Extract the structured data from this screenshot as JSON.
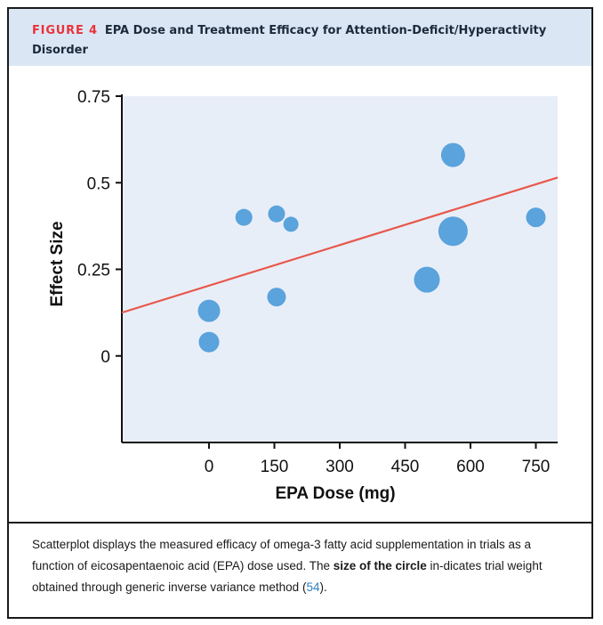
{
  "header": {
    "figure_label": "FIGURE 4",
    "title": "EPA Dose and Treatment Efficacy for Attention-Deficit/Hyperactivity Disorder"
  },
  "chart_data": {
    "type": "scatter",
    "xlabel": "EPA Dose (mg)",
    "ylabel": "Effect Size",
    "xlim": [
      -200,
      800
    ],
    "ylim": [
      -0.25,
      0.75
    ],
    "x_ticks": [
      0,
      150,
      300,
      450,
      600,
      750
    ],
    "x_tick_labels": [
      "0",
      "150",
      "300",
      "450",
      "600",
      "750"
    ],
    "y_ticks": [
      0,
      0.25,
      0.5,
      0.75
    ],
    "y_tick_labels": [
      "0",
      "0.25",
      "0.5",
      "0.75"
    ],
    "grid": false,
    "background_color": "#e8eef8",
    "point_color": "#5aa3dc",
    "trend_color": "#e8574a",
    "points": [
      {
        "x": 0,
        "y": 0.13,
        "weight": 1.25
      },
      {
        "x": 0,
        "y": 0.04,
        "weight": 1.15
      },
      {
        "x": 80,
        "y": 0.4,
        "weight": 0.95
      },
      {
        "x": 155,
        "y": 0.41,
        "weight": 0.95
      },
      {
        "x": 155,
        "y": 0.17,
        "weight": 1.05
      },
      {
        "x": 188,
        "y": 0.38,
        "weight": 0.85
      },
      {
        "x": 500,
        "y": 0.22,
        "weight": 1.45
      },
      {
        "x": 560,
        "y": 0.58,
        "weight": 1.35
      },
      {
        "x": 560,
        "y": 0.36,
        "weight": 1.65
      },
      {
        "x": 750,
        "y": 0.4,
        "weight": 1.1
      }
    ],
    "trendline": {
      "x": [
        -200,
        800
      ],
      "y": [
        0.125,
        0.515
      ]
    }
  },
  "caption": {
    "part1": "Scatterplot displays the measured efficacy of omega-3 fatty acid supplementation in trials as a function of eicosapentaenoic acid (EPA) dose used. The ",
    "bold": "size of the circle",
    "part2": " in-dicates trial weight obtained through generic inverse variance method (",
    "ref": "54",
    "part3": ")."
  }
}
